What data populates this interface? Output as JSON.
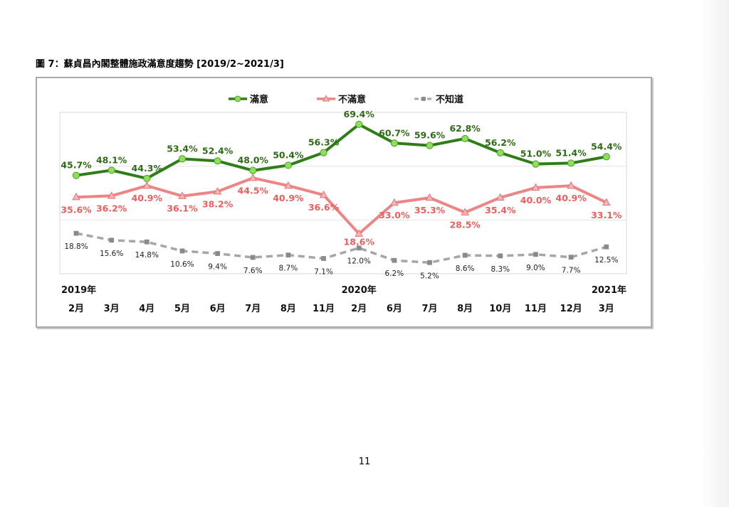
{
  "page": {
    "title": "圖 7：蘇貞昌內閣整體施政滿意度趨勢 [2019/2~2021/3]",
    "page_number": "11"
  },
  "chart_data": {
    "type": "line",
    "title": "圖 7：蘇貞昌內閣整體施政滿意度趨勢 [2019/2~2021/3]",
    "categories": [
      "2月",
      "3月",
      "4月",
      "5月",
      "6月",
      "7月",
      "8月",
      "11月",
      "2月",
      "6月",
      "7月",
      "8月",
      "10月",
      "11月",
      "12月",
      "3月"
    ],
    "year_labels": [
      {
        "index": 0,
        "label": "2019年"
      },
      {
        "index": 8,
        "label": "2020年"
      },
      {
        "index": 15,
        "label": "2021年"
      }
    ],
    "series": [
      {
        "name": "滿意",
        "color": "#2e7d17",
        "marker": "circle",
        "marker_color": "#8de05a",
        "label_color": "#2e6b16",
        "dashed": false,
        "values": [
          45.7,
          48.1,
          44.3,
          53.4,
          52.4,
          48.0,
          50.4,
          56.3,
          69.4,
          60.7,
          59.6,
          62.8,
          56.2,
          51.0,
          51.4,
          54.4
        ],
        "labels": [
          "45.7%",
          "48.1%",
          "44.3%",
          "53.4%",
          "52.4%",
          "48.0%",
          "50.4%",
          "56.3%",
          "69.4%",
          "60.7%",
          "59.6%",
          "62.8%",
          "56.2%",
          "51.0%",
          "51.4%",
          "54.4%"
        ]
      },
      {
        "name": "不滿意",
        "color": "#ee8585",
        "marker": "triangle",
        "marker_color": "#f7b5b5",
        "label_color": "#e8605f",
        "dashed": false,
        "values": [
          35.6,
          36.2,
          40.9,
          36.1,
          38.2,
          44.5,
          40.9,
          36.6,
          18.6,
          33.0,
          35.3,
          28.5,
          35.4,
          40.0,
          40.9,
          33.1
        ],
        "labels": [
          "35.6%",
          "36.2%",
          "40.9%",
          "36.1%",
          "38.2%",
          "44.5%",
          "40.9%",
          "36.6%",
          "18.6%",
          "33.0%",
          "35.3%",
          "28.5%",
          "35.4%",
          "40.0%",
          "40.9%",
          "33.1%"
        ]
      },
      {
        "name": "不知道",
        "color": "#a6a6a6",
        "marker": "square",
        "marker_color": "#8a8a8a",
        "label_color": "#222222",
        "dashed": true,
        "values": [
          18.8,
          15.6,
          14.8,
          10.6,
          9.4,
          7.6,
          8.7,
          7.1,
          12.0,
          6.2,
          5.2,
          8.6,
          8.3,
          9.0,
          7.7,
          12.5
        ],
        "labels": [
          "18.8%",
          "15.6%",
          "14.8%",
          "10.6%",
          "9.4%",
          "7.6%",
          "8.7%",
          "7.1%",
          "12.0%",
          "6.2%",
          "5.2%",
          "8.6%",
          "8.3%",
          "9.0%",
          "7.7%",
          "12.5%"
        ]
      }
    ],
    "ylim": [
      0,
      75
    ],
    "grid": true,
    "legend": "top-center",
    "xlabel": "",
    "ylabel": ""
  }
}
